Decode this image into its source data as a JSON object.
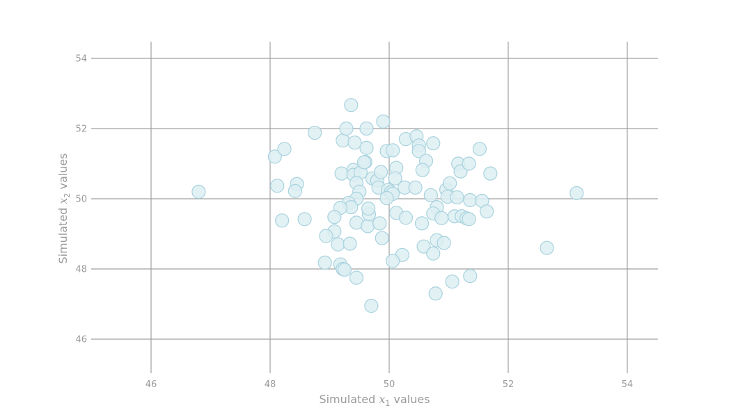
{
  "chart_data": {
    "type": "scatter",
    "title": "",
    "xlabel": "Simulated x1 values",
    "ylabel": "Simulated x2 values",
    "xlabel_parts": {
      "pre": "Simulated ",
      "var": "x",
      "sub": "1",
      "post": " values"
    },
    "ylabel_parts": {
      "pre": "Simulated ",
      "var": "x",
      "sub": "2",
      "post": " values"
    },
    "xlim": [
      45,
      54.5
    ],
    "ylim": [
      45,
      54.5
    ],
    "xticks": [
      46,
      48,
      50,
      52,
      54
    ],
    "yticks": [
      46,
      48,
      50,
      52,
      54
    ],
    "grid": true,
    "colors": {
      "marker_fill": "#dceef2",
      "marker_edge": "#a8d2de",
      "grid": "#a0a0a0",
      "text": "#9a9a9a"
    },
    "points": [
      [
        46.8,
        50.2
      ],
      [
        48.08,
        51.2
      ],
      [
        48.24,
        51.42
      ],
      [
        48.12,
        50.37
      ],
      [
        48.45,
        50.42
      ],
      [
        48.42,
        50.22
      ],
      [
        48.2,
        49.38
      ],
      [
        48.58,
        49.42
      ],
      [
        48.75,
        51.88
      ],
      [
        49.22,
        51.66
      ],
      [
        49.28,
        52.0
      ],
      [
        49.36,
        52.67
      ],
      [
        49.42,
        51.6
      ],
      [
        49.2,
        50.72
      ],
      [
        49.4,
        50.82
      ],
      [
        49.4,
        50.68
      ],
      [
        49.52,
        50.75
      ],
      [
        49.6,
        51.05
      ],
      [
        49.58,
        51.04
      ],
      [
        49.62,
        51.45
      ],
      [
        49.62,
        52.0
      ],
      [
        49.9,
        52.2
      ],
      [
        49.45,
        50.45
      ],
      [
        49.5,
        50.2
      ],
      [
        49.45,
        50.0
      ],
      [
        49.32,
        49.88
      ],
      [
        49.36,
        49.76
      ],
      [
        49.18,
        49.74
      ],
      [
        49.08,
        49.48
      ],
      [
        49.08,
        49.07
      ],
      [
        48.94,
        48.94
      ],
      [
        49.14,
        48.7
      ],
      [
        49.34,
        48.72
      ],
      [
        49.45,
        49.32
      ],
      [
        49.64,
        49.22
      ],
      [
        49.66,
        49.56
      ],
      [
        49.65,
        49.72
      ],
      [
        49.84,
        49.3
      ],
      [
        49.88,
        48.88
      ],
      [
        48.92,
        48.18
      ],
      [
        49.18,
        48.13
      ],
      [
        49.22,
        48.0
      ],
      [
        49.25,
        47.98
      ],
      [
        49.45,
        47.75
      ],
      [
        49.7,
        46.95
      ],
      [
        49.72,
        50.58
      ],
      [
        49.8,
        50.52
      ],
      [
        49.82,
        50.32
      ],
      [
        49.86,
        50.76
      ],
      [
        49.96,
        51.36
      ],
      [
        50.06,
        51.38
      ],
      [
        50.12,
        50.88
      ],
      [
        50.1,
        50.58
      ],
      [
        49.98,
        50.25
      ],
      [
        50.03,
        50.18
      ],
      [
        50.06,
        50.14
      ],
      [
        49.96,
        50.02
      ],
      [
        50.26,
        50.32
      ],
      [
        50.44,
        50.32
      ],
      [
        50.28,
        51.7
      ],
      [
        50.46,
        51.78
      ],
      [
        50.5,
        51.52
      ],
      [
        50.5,
        51.36
      ],
      [
        50.62,
        51.08
      ],
      [
        50.56,
        50.82
      ],
      [
        50.74,
        51.58
      ],
      [
        50.7,
        50.1
      ],
      [
        50.8,
        49.76
      ],
      [
        50.74,
        49.58
      ],
      [
        50.88,
        49.45
      ],
      [
        50.55,
        49.3
      ],
      [
        50.12,
        49.6
      ],
      [
        50.28,
        49.46
      ],
      [
        50.58,
        48.64
      ],
      [
        50.74,
        48.44
      ],
      [
        50.8,
        48.82
      ],
      [
        50.92,
        48.74
      ],
      [
        50.22,
        48.4
      ],
      [
        50.06,
        48.23
      ],
      [
        50.78,
        47.3
      ],
      [
        51.06,
        47.64
      ],
      [
        51.36,
        47.8
      ],
      [
        50.96,
        50.26
      ],
      [
        50.98,
        50.06
      ],
      [
        51.02,
        50.44
      ],
      [
        51.14,
        50.04
      ],
      [
        51.16,
        51.0
      ],
      [
        51.2,
        50.78
      ],
      [
        51.34,
        51.0
      ],
      [
        51.52,
        51.42
      ],
      [
        51.7,
        50.72
      ],
      [
        51.36,
        49.96
      ],
      [
        51.56,
        49.94
      ],
      [
        51.64,
        49.64
      ],
      [
        51.1,
        49.5
      ],
      [
        51.22,
        49.5
      ],
      [
        51.3,
        49.44
      ],
      [
        51.34,
        49.42
      ],
      [
        52.65,
        48.6
      ],
      [
        53.15,
        50.16
      ]
    ]
  }
}
